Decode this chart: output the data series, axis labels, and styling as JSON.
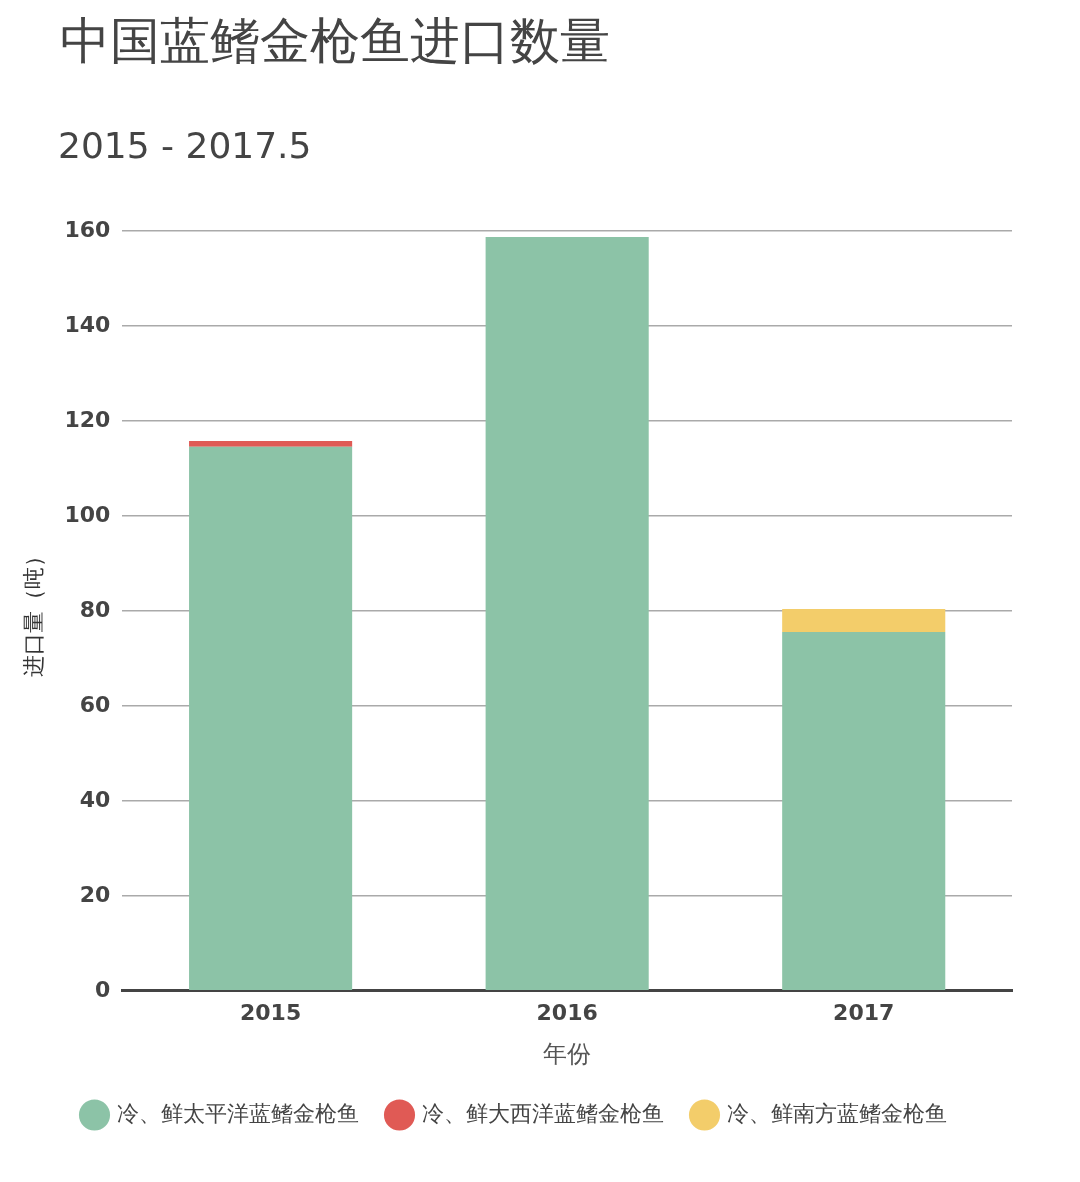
{
  "chart_data": {
    "type": "bar",
    "title": "中国蓝鳍金枪鱼进口数量",
    "subtitle": "2015 - 2017.5",
    "xlabel": "年份",
    "ylabel": "进口量（吨）",
    "categories": [
      "2015",
      "2016",
      "2017"
    ],
    "stacked": true,
    "series": [
      {
        "name": "冷、鲜太平洋蓝鳍金枪鱼",
        "color": "#8cc3a7",
        "values": [
          114.6,
          158.8,
          75.6
        ]
      },
      {
        "name": "冷、鲜大西洋蓝鳍金枪鱼",
        "color": "#e05a55",
        "values": [
          1.2,
          null,
          null
        ]
      },
      {
        "name": "冷、鲜南方蓝鳍金枪鱼",
        "color": "#f3cd6a",
        "values": [
          null,
          null,
          4.8
        ]
      }
    ],
    "ylim": [
      0,
      160
    ],
    "yticks": [
      0,
      20,
      40,
      60,
      80,
      100,
      120,
      140,
      160
    ],
    "grid": "y",
    "legend": "bottom"
  }
}
